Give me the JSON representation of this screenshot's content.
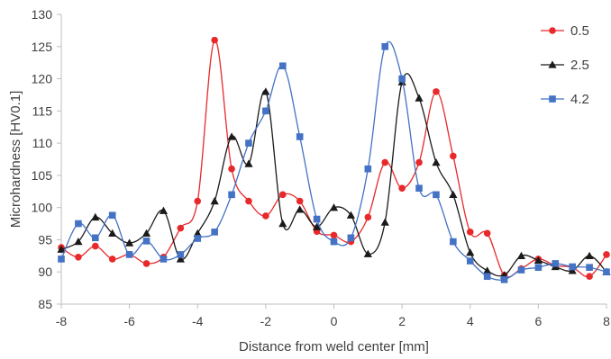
{
  "chart_data": {
    "type": "line",
    "title": "",
    "xlabel": "Distance from weld center [mm]",
    "ylabel": "Microhardness [HV0.1]",
    "xlim": [
      -8,
      8
    ],
    "ylim": [
      85,
      130
    ],
    "xticks": [
      "-8",
      "-6",
      "-4",
      "-2",
      "0",
      "2",
      "4",
      "6",
      "8"
    ],
    "yticks": [
      "85",
      "90",
      "95",
      "100",
      "105",
      "110",
      "115",
      "120",
      "125",
      "130"
    ],
    "grid": false,
    "legend_position": "right",
    "series": [
      {
        "name": "0.5",
        "color": "#e8282b",
        "marker": "circle",
        "x": [
          -8,
          -7.5,
          -7,
          -6.5,
          -6,
          -5.5,
          -5,
          -4.5,
          -4,
          -3.5,
          -3,
          -2.5,
          -2,
          -1.5,
          -1,
          -0.5,
          0,
          0.5,
          1,
          1.5,
          2,
          2.5,
          3,
          3.5,
          4,
          4.5,
          5,
          5.5,
          6,
          6.5,
          7,
          7.5,
          8
        ],
        "y": [
          93.8,
          92.3,
          94.0,
          92.0,
          92.7,
          91.3,
          92.3,
          96.8,
          101.0,
          126.0,
          106.0,
          101.0,
          98.7,
          102.0,
          101.0,
          96.3,
          95.7,
          94.7,
          98.5,
          107.0,
          103.0,
          107.0,
          118.0,
          108.0,
          96.2,
          96.0,
          89.5,
          90.5,
          92.0,
          91.0,
          90.7,
          89.3,
          92.7
        ]
      },
      {
        "name": "2.5",
        "color": "#1a1a1a",
        "marker": "triangle",
        "x": [
          -8,
          -7.5,
          -7,
          -6.5,
          -6,
          -5.5,
          -5,
          -4.5,
          -4,
          -3.5,
          -3,
          -2.5,
          -2,
          -1.5,
          -1,
          -0.5,
          0,
          0.5,
          1,
          1.5,
          2,
          2.5,
          3,
          3.5,
          4,
          4.5,
          5,
          5.5,
          6,
          6.5,
          7,
          7.5,
          8
        ],
        "y": [
          93.5,
          94.7,
          98.5,
          96.0,
          94.5,
          96.0,
          99.5,
          92.0,
          96.0,
          101.0,
          111.0,
          106.8,
          118.0,
          97.5,
          99.7,
          97.0,
          100.0,
          98.8,
          92.8,
          97.7,
          119.5,
          117.0,
          107.0,
          102.0,
          93.0,
          90.2,
          89.5,
          92.5,
          91.8,
          90.8,
          90.2,
          92.5,
          90.0
        ]
      },
      {
        "name": "4.2",
        "color": "#4472c4",
        "marker": "square",
        "x": [
          -8,
          -7.5,
          -7,
          -6.5,
          -6,
          -5.5,
          -5,
          -4.5,
          -4,
          -3.5,
          -3,
          -2.5,
          -2,
          -1.5,
          -1,
          -0.5,
          0,
          0.5,
          1,
          1.5,
          2,
          2.5,
          3,
          3.5,
          4,
          4.5,
          5,
          5.5,
          6,
          6.5,
          7,
          7.5,
          8
        ],
        "y": [
          92.0,
          97.5,
          95.3,
          98.8,
          92.7,
          94.8,
          92.0,
          92.7,
          95.2,
          96.2,
          102.0,
          110.0,
          115.0,
          122.0,
          111.0,
          98.2,
          94.7,
          95.3,
          106.0,
          125.0,
          120.0,
          103.0,
          102.0,
          94.7,
          91.7,
          89.3,
          88.8,
          90.3,
          90.7,
          91.3,
          90.8,
          90.7,
          90.0
        ]
      }
    ]
  }
}
